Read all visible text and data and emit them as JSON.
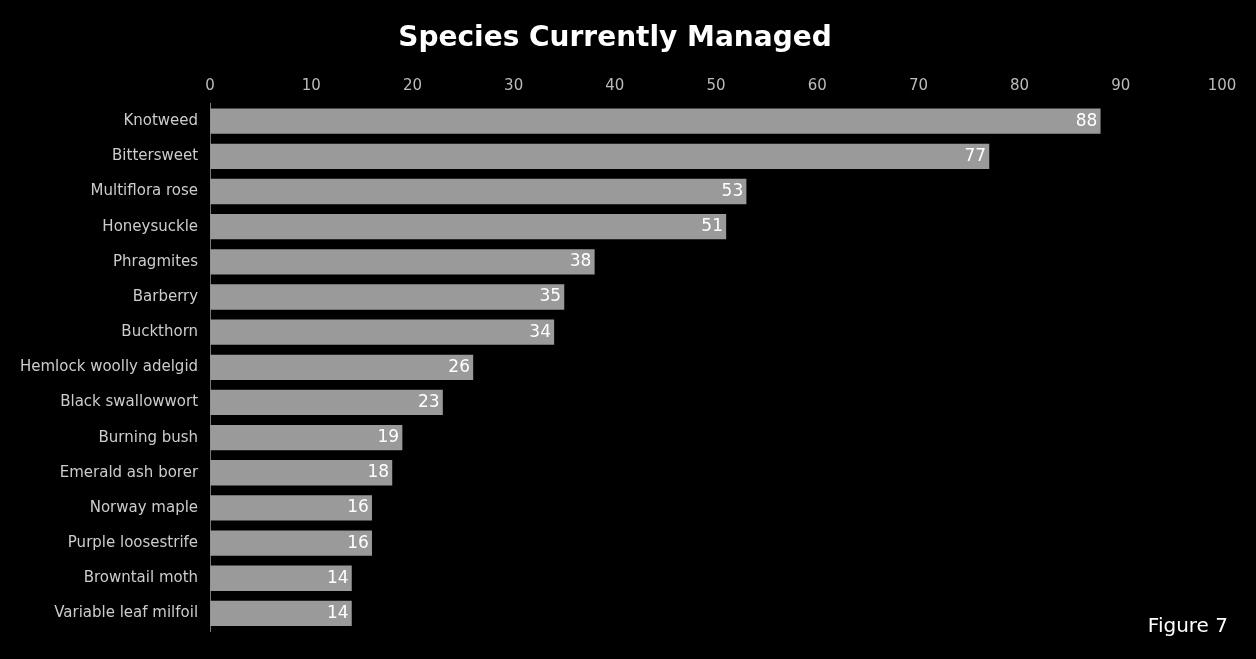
{
  "chart_data": {
    "type": "bar",
    "orientation": "horizontal",
    "title": "Species Currently Managed",
    "categories": [
      "Knotweed",
      "Bittersweet",
      "Multiflora rose",
      "Honeysuckle",
      "Phragmites",
      "Barberry",
      "Buckthorn",
      "Hemlock woolly adelgid",
      "Black swallowwort",
      "Burning bush",
      "Emerald ash borer",
      "Norway maple",
      "Purple loosestrife",
      "Browntail moth",
      "Variable leaf milfoil"
    ],
    "values": [
      88,
      77,
      53,
      51,
      38,
      35,
      34,
      26,
      23,
      19,
      18,
      16,
      16,
      14,
      14
    ],
    "color": "#9a9a9a",
    "xlim": [
      0,
      100
    ],
    "xticks": [
      0,
      10,
      20,
      30,
      40,
      50,
      60,
      70,
      80,
      90,
      100
    ],
    "data_labels": true,
    "annotations": [
      "Figure 7"
    ]
  }
}
